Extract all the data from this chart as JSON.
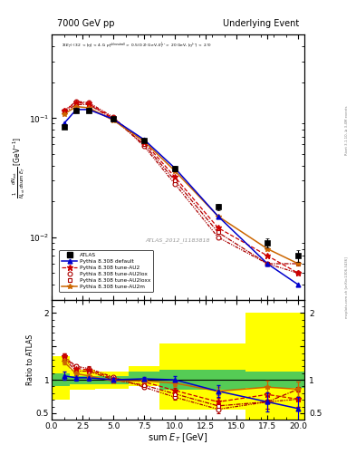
{
  "title_left": "7000 GeV pp",
  "title_right": "Underlying Event",
  "annotation": "ATLAS_2012_I1183818",
  "rivet_text": "Rivet 3.1.10, ≥ 3.4M events",
  "mcplots_text": "mcplots.cern.ch [arXiv:1306.3436]",
  "ylabel_main": "1/N_{evt} dN_{evt}/dsum E_T  [GeV^{-1}]",
  "ylabel_ratio": "Ratio to ATLAS",
  "xlabel": "sum E_T [GeV]",
  "x_data": [
    1.0,
    2.0,
    3.0,
    5.0,
    7.5,
    10.0,
    13.5,
    17.5,
    20.0
  ],
  "atlas_y": [
    0.085,
    0.115,
    0.115,
    0.098,
    0.065,
    0.038,
    0.018,
    0.009,
    0.007
  ],
  "atlas_yerr": [
    0.004,
    0.004,
    0.004,
    0.003,
    0.002,
    0.002,
    0.001,
    0.0008,
    0.0008
  ],
  "pythia_default_y": [
    0.09,
    0.118,
    0.118,
    0.098,
    0.066,
    0.038,
    0.015,
    0.006,
    0.004
  ],
  "pythia_au2_y": [
    0.115,
    0.135,
    0.132,
    0.1,
    0.063,
    0.032,
    0.012,
    0.007,
    0.005
  ],
  "pythia_au2lox_y": [
    0.115,
    0.138,
    0.135,
    0.102,
    0.058,
    0.028,
    0.01,
    0.006,
    0.005
  ],
  "pythia_au2loxx_y": [
    0.112,
    0.13,
    0.13,
    0.098,
    0.06,
    0.03,
    0.011,
    0.006,
    0.006
  ],
  "pythia_au2m_y": [
    0.108,
    0.125,
    0.122,
    0.096,
    0.064,
    0.036,
    0.015,
    0.008,
    0.006
  ],
  "ratio_default_y": [
    1.06,
    1.03,
    1.03,
    1.0,
    1.015,
    1.0,
    0.83,
    0.67,
    0.57
  ],
  "ratio_au2_y": [
    1.35,
    1.17,
    1.15,
    1.02,
    0.97,
    0.84,
    0.67,
    0.78,
    0.71
  ],
  "ratio_au2lox_y": [
    1.35,
    1.2,
    1.17,
    1.04,
    0.89,
    0.74,
    0.56,
    0.67,
    0.71
  ],
  "ratio_au2loxx_y": [
    1.32,
    1.13,
    1.13,
    1.0,
    0.92,
    0.79,
    0.61,
    0.67,
    0.86
  ],
  "ratio_au2m_y": [
    1.27,
    1.09,
    1.06,
    0.98,
    0.985,
    0.95,
    0.83,
    0.89,
    0.86
  ],
  "ratio_default_err": [
    0.06,
    0.04,
    0.04,
    0.03,
    0.03,
    0.05,
    0.09,
    0.14,
    0.18
  ],
  "ratio_au2_err": [
    0.04,
    0.03,
    0.03,
    0.02,
    0.02,
    0.04,
    0.06,
    0.1,
    0.12
  ],
  "ratio_au2lox_err": [
    0.04,
    0.03,
    0.03,
    0.02,
    0.02,
    0.04,
    0.06,
    0.1,
    0.12
  ],
  "ratio_au2loxx_err": [
    0.04,
    0.03,
    0.03,
    0.02,
    0.02,
    0.04,
    0.06,
    0.1,
    0.12
  ],
  "ratio_au2m_err": [
    0.04,
    0.03,
    0.03,
    0.02,
    0.02,
    0.04,
    0.06,
    0.1,
    0.12
  ],
  "color_atlas": "#000000",
  "color_default": "#0000cc",
  "color_au2": "#cc0000",
  "color_au2lox": "#cc0000",
  "color_au2loxx": "#cc0000",
  "color_au2m": "#cc6600",
  "ylim_main": [
    0.003,
    0.5
  ],
  "ylim_ratio": [
    0.4,
    2.2
  ],
  "xlim": [
    0,
    20.5
  ],
  "x_bin_edges": [
    0.0,
    1.5,
    2.5,
    3.5,
    6.25,
    8.75,
    11.75,
    15.75,
    18.75,
    20.5
  ],
  "yellow_lo": [
    0.7,
    0.85,
    0.85,
    0.87,
    0.9,
    0.55,
    0.55,
    0.4,
    0.4
  ],
  "yellow_hi": [
    1.35,
    1.15,
    1.15,
    1.13,
    1.2,
    1.55,
    1.55,
    2.0,
    2.0
  ],
  "green_lo": [
    0.9,
    0.94,
    0.94,
    0.94,
    0.97,
    0.85,
    0.85,
    0.88,
    0.88
  ],
  "green_hi": [
    1.1,
    1.06,
    1.06,
    1.06,
    1.12,
    1.15,
    1.15,
    1.12,
    1.12
  ]
}
